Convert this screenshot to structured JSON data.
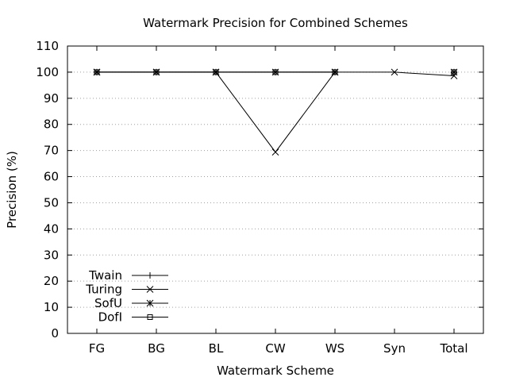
{
  "chart_data": {
    "type": "line",
    "title": "Watermark Precision for Combined Schemes",
    "xlabel": "Watermark Scheme",
    "ylabel": "Precision (%)",
    "categories": [
      "FG",
      "BG",
      "BL",
      "CW",
      "WS",
      "Syn",
      "Total"
    ],
    "ylim": [
      0,
      110
    ],
    "yticks": [
      0,
      10,
      20,
      30,
      40,
      50,
      60,
      70,
      80,
      90,
      100,
      110
    ],
    "grid": true,
    "legend_position": "bottom-left",
    "series": [
      {
        "name": "Twain",
        "marker": "plus",
        "values": [
          100,
          100,
          100,
          100,
          100,
          null,
          100
        ]
      },
      {
        "name": "Turing",
        "marker": "cross",
        "values": [
          100,
          100,
          100,
          69.4,
          100,
          100,
          98.6
        ]
      },
      {
        "name": "SofU",
        "marker": "star",
        "values": [
          100,
          100,
          100,
          100,
          100,
          null,
          100
        ]
      },
      {
        "name": "DofI",
        "marker": "square",
        "values": [
          100,
          100,
          100,
          100,
          100,
          null,
          100
        ]
      }
    ]
  }
}
